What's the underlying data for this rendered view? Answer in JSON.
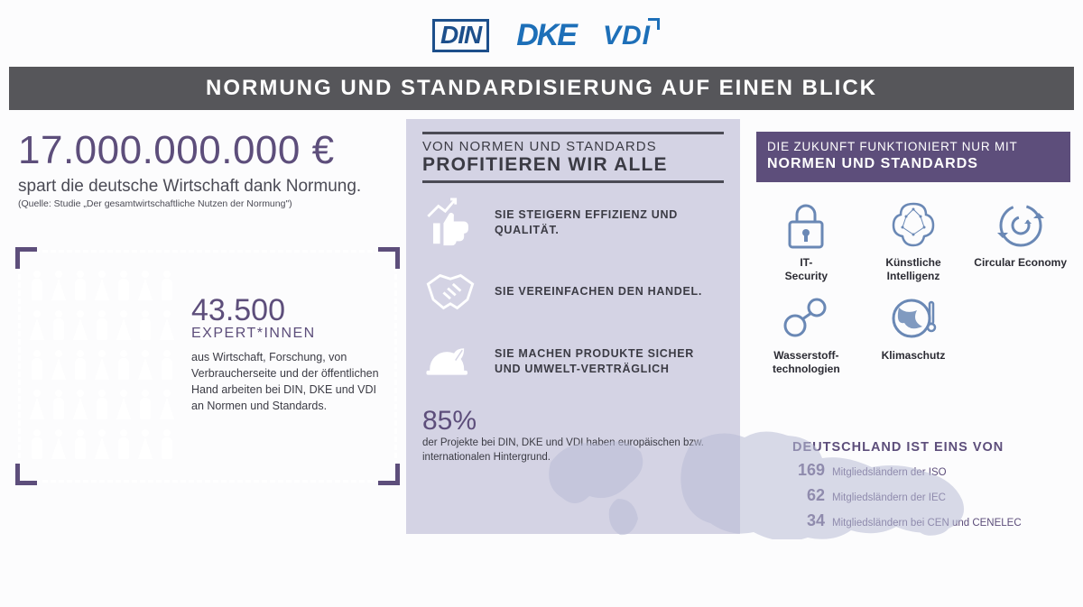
{
  "logos": {
    "din": "DIN",
    "dke": "DKE",
    "vdi": "VDI"
  },
  "title": "NORMUNG UND STANDARDISIERUNG AUF EINEN BLICK",
  "colors": {
    "accent": "#5d4e7b",
    "titlebar_bg": "#56565a",
    "panel_bg": "#d4d3e4",
    "icon_blue": "#6a88b5",
    "logo_din": "#1d4f8b",
    "logo_dke": "#1d6fb8"
  },
  "savings": {
    "amount": "17.000.000.000 €",
    "subtitle": "spart die deutsche Wirtschaft dank Normung.",
    "source": "(Quelle: Studie „Der gesamtwirtschaftliche Nutzen der Normung\")"
  },
  "experts": {
    "number": "43.500",
    "label": "EXPERT*INNEN",
    "description": "aus Wirtschaft, Forschung, von Verbraucherseite und der öffentlichen Hand arbeiten bei DIN, DKE und VDI an Normen und Standards.",
    "people_rows": 5,
    "people_cols": 7
  },
  "benefits": {
    "heading_top": "VON NORMEN UND STANDARDS",
    "heading": "PROFITIEREN WIR ALLE",
    "items": [
      {
        "icon": "chart-thumb",
        "text": "SIE STEIGERN EFFIZIENZ UND QUALITÄT."
      },
      {
        "icon": "handshake",
        "text": "SIE VEREINFACHEN DEN HANDEL."
      },
      {
        "icon": "helmet-leaf",
        "text": "SIE MACHEN PRODUKTE SICHER UND UMWELT-VERTRÄGLICH"
      }
    ]
  },
  "percent": {
    "value": "85%",
    "description": "der Projekte bei DIN, DKE und VDI haben europäischen bzw. internationalen Hintergrund."
  },
  "future": {
    "heading_top": "DIE ZUKUNFT FUNKTIONIERT NUR MIT",
    "heading": "NORMEN UND STANDARDS",
    "items": [
      {
        "icon": "lock",
        "label": "IT-Security"
      },
      {
        "icon": "brain",
        "label": "Künstliche Intelligenz"
      },
      {
        "icon": "cycle",
        "label": "Circular Economy"
      },
      {
        "icon": "molecule",
        "label": "Wasserstoff-technologien"
      },
      {
        "icon": "globe",
        "label": "Klimaschutz"
      }
    ]
  },
  "membership": {
    "heading": "DEUTSCHLAND IST EINS VON",
    "rows": [
      {
        "num": "169",
        "text": "Mitgliedsländern der ISO"
      },
      {
        "num": "62",
        "text": "Mitgliedsländern der IEC"
      },
      {
        "num": "34",
        "text": "Mitgliedsländern bei CEN und CENELEC"
      }
    ]
  }
}
